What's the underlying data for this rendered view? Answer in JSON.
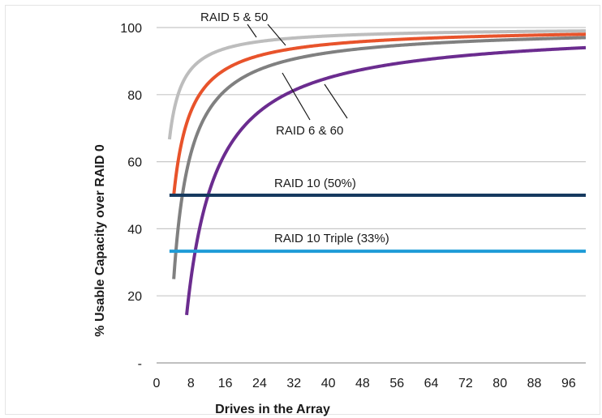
{
  "chart_data": {
    "type": "line",
    "title": "",
    "xlabel": "Drives in the Array",
    "ylabel": "% Usable Capacity  over RAID 0",
    "xlim": [
      0,
      100
    ],
    "ylim": [
      0,
      100
    ],
    "x_ticks": [
      "0",
      "8",
      "16",
      "24",
      "32",
      "40",
      "48",
      "56",
      "64",
      "72",
      "80",
      "88",
      "96"
    ],
    "x_tick_values": [
      0,
      8,
      16,
      24,
      32,
      40,
      48,
      56,
      64,
      72,
      80,
      88,
      96
    ],
    "y_ticks": [
      "-",
      "20",
      "40",
      "60",
      "80",
      "100"
    ],
    "y_tick_values": [
      0,
      20,
      40,
      60,
      80,
      100
    ],
    "grid": "horizontal",
    "legend": "none",
    "series": [
      {
        "x_start": 3,
        "x_end": 100,
        "formula": "(n-1)/n",
        "color": "#bdbdbd",
        "samples": [
          [
            3,
            66.7
          ],
          [
            4,
            75
          ],
          [
            8,
            87.5
          ],
          [
            16,
            93.8
          ],
          [
            32,
            96.9
          ],
          [
            64,
            98.4
          ],
          [
            96,
            99
          ]
        ]
      },
      {
        "x_start": 4,
        "x_end": 100,
        "formula": "(n-2)/n",
        "color": "#e8532b",
        "samples": [
          [
            4,
            50
          ],
          [
            8,
            75
          ],
          [
            16,
            87.5
          ],
          [
            32,
            93.8
          ],
          [
            64,
            96.9
          ],
          [
            96,
            97.9
          ]
        ]
      },
      {
        "x_start": 4,
        "x_end": 100,
        "formula": "(n-3)/n",
        "color": "#808080",
        "samples": [
          [
            4,
            25
          ],
          [
            8,
            62.5
          ],
          [
            16,
            81.3
          ],
          [
            32,
            90.6
          ],
          [
            64,
            95.3
          ],
          [
            96,
            96.9
          ]
        ]
      },
      {
        "x_start": 7,
        "x_end": 100,
        "formula": "(n-6)/n",
        "color": "#6b2c8f",
        "samples": [
          [
            7,
            14.3
          ],
          [
            8,
            25
          ],
          [
            16,
            62.5
          ],
          [
            32,
            81.3
          ],
          [
            64,
            90.6
          ],
          [
            96,
            93.8
          ]
        ]
      },
      {
        "x_start": 3,
        "x_end": 100,
        "constant": 50,
        "color": "#163a5f"
      },
      {
        "x_start": 3,
        "x_end": 100,
        "constant": 33.3,
        "color": "#1e9bd7"
      }
    ],
    "annotations": [
      {
        "text": "RAID 5 & 50",
        "color": "#1a1a1a"
      },
      {
        "text": "RAID 6 & 60",
        "color": "#1a1a1a"
      },
      {
        "text": "RAID 10 (50%)",
        "color": "#1a1a1a"
      },
      {
        "text": "RAID 10 Triple (33%)",
        "color": "#1a1a1a"
      }
    ],
    "colors": {
      "grid": "#c8c8c8",
      "axis": "#9a9a9a"
    }
  }
}
